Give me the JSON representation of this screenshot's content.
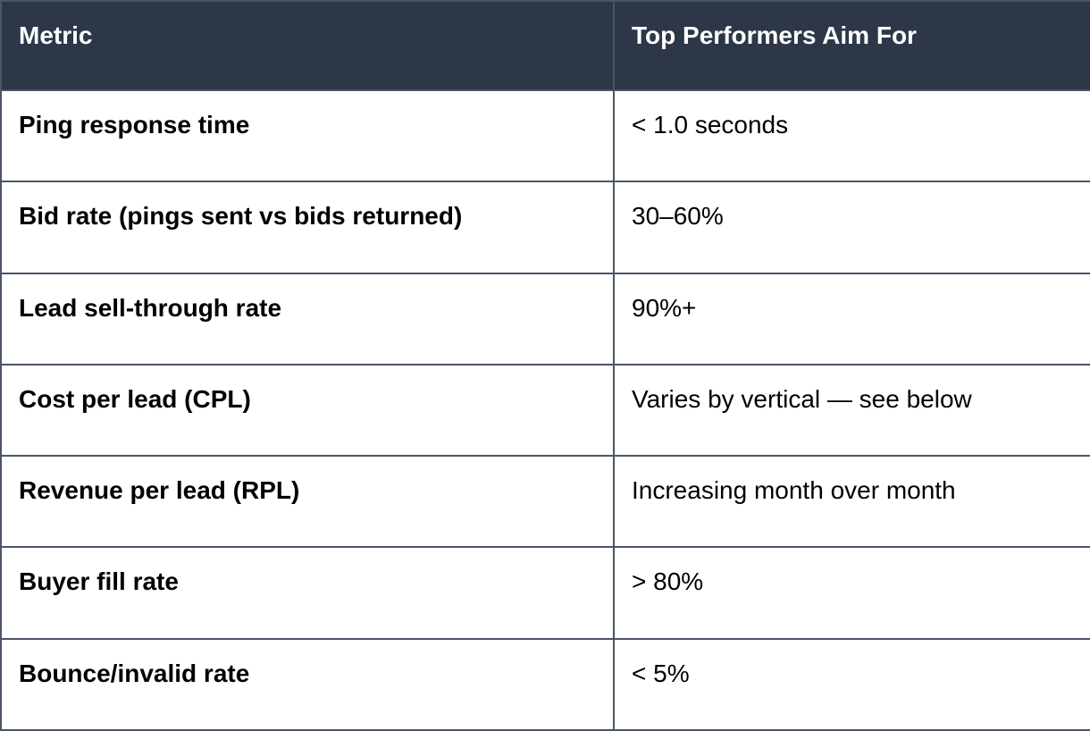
{
  "table": {
    "columns": [
      {
        "label": "Metric"
      },
      {
        "label": "Top Performers Aim For"
      }
    ],
    "rows": [
      {
        "metric": "Ping response time",
        "target": "< 1.0 seconds"
      },
      {
        "metric": "Bid rate (pings sent vs bids returned)",
        "target": "30–60%"
      },
      {
        "metric": "Lead sell-through rate",
        "target": "90%+"
      },
      {
        "metric": "Cost per lead (CPL)",
        "target": "Varies by vertical — see below"
      },
      {
        "metric": "Revenue per lead (RPL)",
        "target": "Increasing month over month"
      },
      {
        "metric": "Buyer fill rate",
        "target": "> 80%"
      },
      {
        "metric": "Bounce/invalid rate",
        "target": "< 5%"
      }
    ],
    "colors": {
      "header_bg": "#2d3748",
      "header_text": "#ffffff",
      "border": "#4a5568",
      "body_bg": "#ffffff",
      "body_text": "#000000"
    }
  }
}
